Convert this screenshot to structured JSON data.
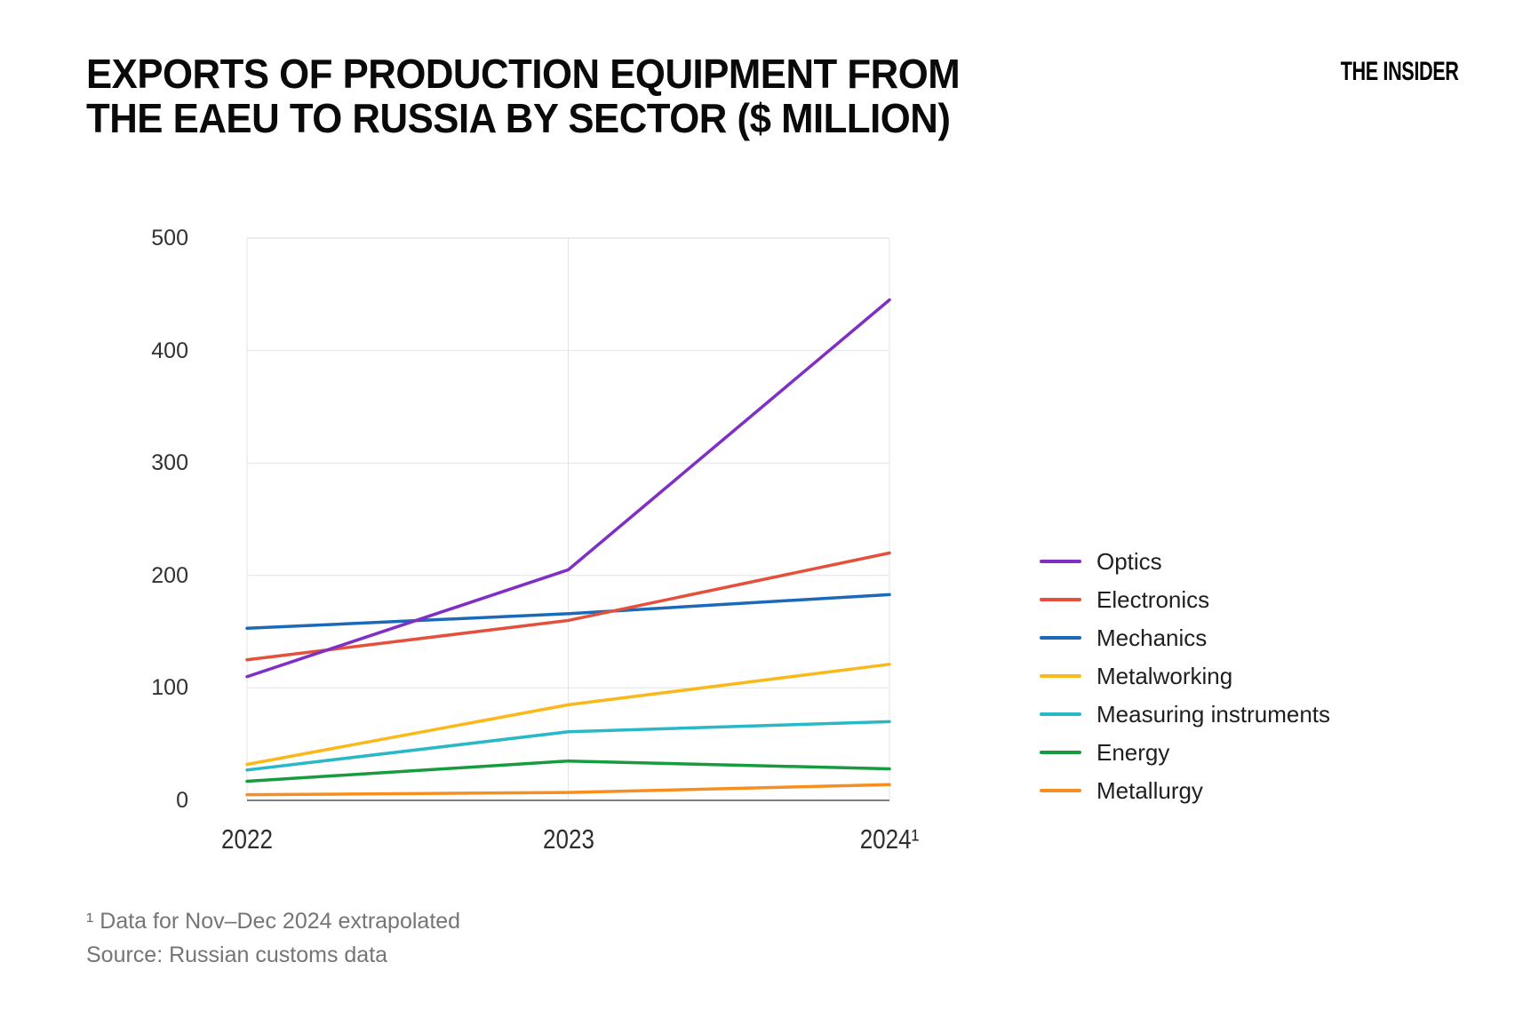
{
  "header": {
    "title_lines": [
      "EXPORTS OF PRODUCTION EQUIPMENT FROM",
      "THE EAEU TO RUSSIA BY SECTOR ($ MILLION)"
    ],
    "brand": "THE INSIDER"
  },
  "chart_data": {
    "type": "line",
    "title": "EXPORTS OF PRODUCTION EQUIPMENT FROM THE EAEU TO RUSSIA BY SECTOR ($ MILLION)",
    "x": [
      "2022",
      "2023",
      "2024¹"
    ],
    "series": [
      {
        "name": "Optics",
        "color": "#7F2FC4",
        "values": [
          110,
          205,
          445
        ]
      },
      {
        "name": "Electronics",
        "color": "#E5503C",
        "values": [
          125,
          160,
          220
        ]
      },
      {
        "name": "Mechanics",
        "color": "#1C69B9",
        "values": [
          153,
          166,
          183
        ]
      },
      {
        "name": "Metalworking",
        "color": "#FBB81A",
        "values": [
          32,
          85,
          121
        ]
      },
      {
        "name": "Measuring instruments",
        "color": "#29B8C5",
        "values": [
          27,
          61,
          70
        ]
      },
      {
        "name": "Energy",
        "color": "#169C3E",
        "values": [
          17,
          35,
          28
        ]
      },
      {
        "name": "Metallurgy",
        "color": "#F78E20",
        "values": [
          5,
          7,
          14
        ]
      }
    ],
    "ylim": [
      0,
      500
    ],
    "yticks": [
      0,
      100,
      200,
      300,
      400,
      500
    ],
    "grid": true,
    "legend_position": "right"
  },
  "footnotes": {
    "note": "¹ Data for Nov–Dec 2024 extrapolated",
    "source": "Source: Russian customs data"
  }
}
